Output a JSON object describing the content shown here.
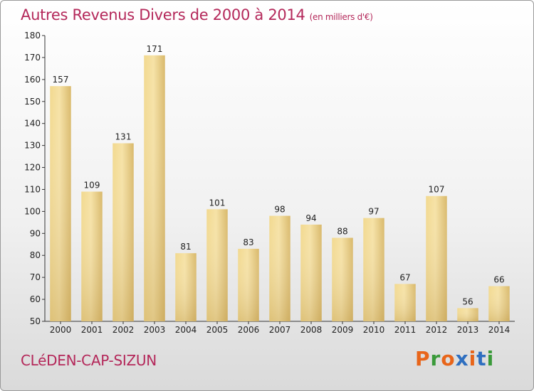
{
  "header": {
    "title": "Autres Revenus Divers de 2000 à 2014",
    "unit": "(en milliers d'€)"
  },
  "footer": {
    "commune": "CLéDEN-CAP-SIZUN",
    "logo_text": "Proxiti",
    "logo_colors": [
      "#e8651a",
      "#3a9a3a",
      "#e8651a",
      "#2f6fc0",
      "#e8651a",
      "#2f6fc0",
      "#3a9a3a"
    ]
  },
  "chart_data": {
    "type": "bar",
    "title": "Autres Revenus Divers de 2000 à 2014",
    "subtitle": "(en milliers d'€)",
    "xlabel": "",
    "ylabel": "",
    "categories": [
      "2000",
      "2001",
      "2002",
      "2003",
      "2004",
      "2005",
      "2006",
      "2007",
      "2008",
      "2009",
      "2010",
      "2011",
      "2012",
      "2013",
      "2014"
    ],
    "values": [
      157,
      109,
      131,
      171,
      81,
      101,
      83,
      98,
      94,
      88,
      97,
      67,
      107,
      56,
      66
    ],
    "ylim": [
      50,
      180
    ],
    "yticks": [
      50,
      60,
      70,
      80,
      90,
      100,
      110,
      120,
      130,
      140,
      150,
      160,
      170,
      180
    ],
    "grid": false,
    "legend": "none",
    "bar_color": "#e6c982",
    "bar_color_light": "#f6e2a6",
    "bar_color_dark": "#cfae62"
  }
}
